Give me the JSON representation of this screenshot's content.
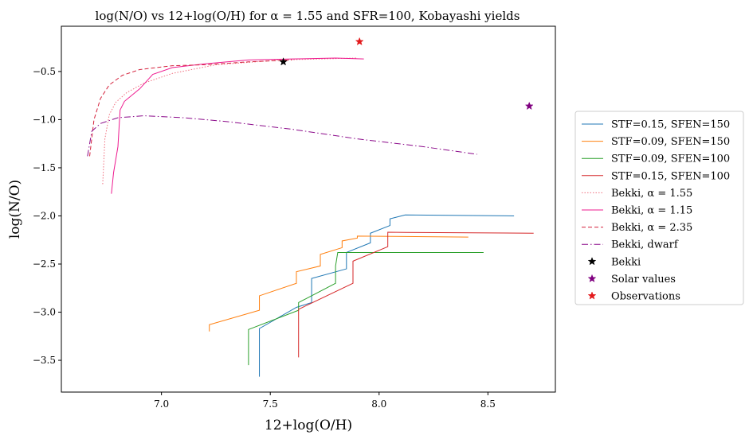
{
  "chart_data": {
    "type": "line",
    "title": "log(N/O) vs 12+log(O/H) for α = 1.55 and SFR=100, Kobayashi yields",
    "xlabel": "12+log(O/H)",
    "ylabel": "log(N/O)",
    "xlim": [
      6.54,
      8.81
    ],
    "ylim": [
      -3.83,
      -0.03
    ],
    "xticks": [
      7.0,
      7.5,
      8.0,
      8.5
    ],
    "xtick_labels": [
      "7.0",
      "7.5",
      "8.0",
      "8.5"
    ],
    "yticks": [
      -0.5,
      -1.0,
      -1.5,
      -2.0,
      -2.5,
      -3.0,
      -3.5
    ],
    "ytick_labels": [
      "−0.5",
      "−1.0",
      "−1.5",
      "−2.0",
      "−2.5",
      "−3.0",
      "−3.5"
    ],
    "legend_placement": "outside-right",
    "series": [
      {
        "name": "STF=0.15, SFEN=150",
        "kind": "line",
        "color": "#1f77b4",
        "dash": "solid",
        "x": [
          7.45,
          7.45,
          7.62,
          7.69,
          7.69,
          7.85,
          7.85,
          7.96,
          7.96,
          8.05,
          8.05,
          8.12,
          8.62
        ],
        "y": [
          -3.67,
          -3.17,
          -2.95,
          -2.9,
          -2.65,
          -2.55,
          -2.38,
          -2.28,
          -2.18,
          -2.1,
          -2.03,
          -1.99,
          -2.0
        ]
      },
      {
        "name": "STF=0.09, SFEN=150",
        "kind": "line",
        "color": "#ff7f0e",
        "dash": "solid",
        "x": [
          7.22,
          7.22,
          7.45,
          7.45,
          7.62,
          7.62,
          7.73,
          7.73,
          7.83,
          7.83,
          7.9,
          7.9,
          8.41
        ],
        "y": [
          -3.2,
          -3.13,
          -2.98,
          -2.83,
          -2.7,
          -2.58,
          -2.52,
          -2.4,
          -2.33,
          -2.26,
          -2.23,
          -2.21,
          -2.22
        ]
      },
      {
        "name": "STF=0.09, SFEN=100",
        "kind": "line",
        "color": "#2ca02c",
        "dash": "solid",
        "x": [
          7.4,
          7.4,
          7.63,
          7.63,
          7.8,
          7.8,
          7.81,
          8.48
        ],
        "y": [
          -3.55,
          -3.18,
          -2.98,
          -2.9,
          -2.7,
          -2.52,
          -2.38,
          -2.38
        ]
      },
      {
        "name": "STF=0.15, SFEN=100",
        "kind": "line",
        "color": "#d62728",
        "dash": "solid",
        "x": [
          7.63,
          7.63,
          7.88,
          7.88,
          8.04,
          8.04,
          8.71
        ],
        "y": [
          -3.47,
          -2.97,
          -2.7,
          -2.47,
          -2.32,
          -2.17,
          -2.18
        ]
      },
      {
        "name": "Bekki, α = 1.55",
        "kind": "line",
        "color": "#f06d7d",
        "dash": "1.5 2",
        "x": [
          6.73,
          6.74,
          6.76,
          6.79,
          6.84,
          6.92,
          7.05,
          7.25,
          7.55,
          7.9
        ],
        "y": [
          -1.67,
          -1.2,
          -0.95,
          -0.82,
          -0.72,
          -0.62,
          -0.52,
          -0.43,
          -0.38,
          -0.36
        ]
      },
      {
        "name": "Bekki, α = 1.15",
        "kind": "line",
        "color": "#ee1a8f",
        "dash": "solid",
        "x": [
          6.77,
          6.78,
          6.8,
          6.81,
          6.83,
          6.9,
          6.96,
          7.05,
          7.2,
          7.4,
          7.6,
          7.8,
          7.93
        ],
        "y": [
          -1.77,
          -1.55,
          -1.28,
          -0.9,
          -0.81,
          -0.68,
          -0.53,
          -0.46,
          -0.42,
          -0.38,
          -0.37,
          -0.36,
          -0.37
        ]
      },
      {
        "name": "Bekki, α = 2.35",
        "kind": "line",
        "color": "#d4213c",
        "dash": "5 3",
        "x": [
          6.67,
          6.69,
          6.72,
          6.76,
          6.82,
          6.9,
          7.05,
          7.2,
          7.4,
          7.6
        ],
        "y": [
          -1.38,
          -1.0,
          -0.78,
          -0.64,
          -0.54,
          -0.48,
          -0.44,
          -0.43,
          -0.4,
          -0.38
        ]
      },
      {
        "name": "Bekki, dwarf",
        "kind": "line",
        "color": "#8b0a8a",
        "dash": "8 3 1.5 3",
        "x": [
          6.66,
          6.68,
          6.72,
          6.8,
          6.92,
          7.1,
          7.3,
          7.6,
          7.9,
          8.2,
          8.45
        ],
        "y": [
          -1.38,
          -1.12,
          -1.04,
          -0.98,
          -0.96,
          -0.98,
          -1.02,
          -1.1,
          -1.2,
          -1.28,
          -1.36
        ]
      },
      {
        "name": "Bekki",
        "kind": "marker",
        "color": "#000000",
        "x": [
          7.56
        ],
        "y": [
          -0.4
        ]
      },
      {
        "name": "Solar values",
        "kind": "marker",
        "color": "#800080",
        "x": [
          8.69
        ],
        "y": [
          -0.86
        ]
      },
      {
        "name": "Observations",
        "kind": "marker",
        "color": "#e31a1c",
        "x": [
          7.91
        ],
        "y": [
          -0.19
        ]
      }
    ]
  }
}
